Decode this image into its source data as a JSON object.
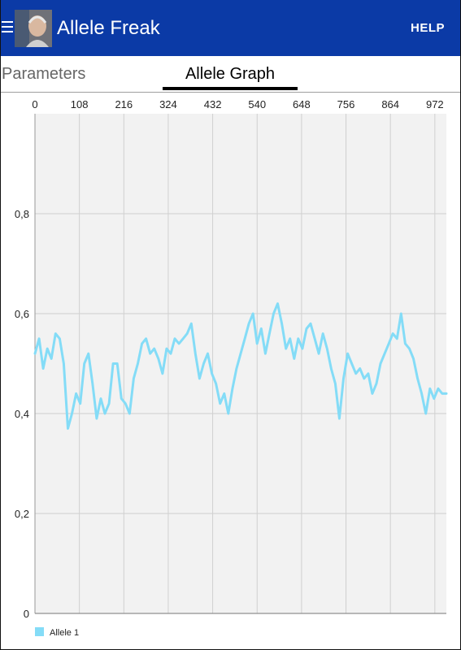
{
  "app_bar": {
    "title": "Allele Freak",
    "help_label": "HELP",
    "background": "#0b3aa6",
    "menu_icon": "hamburger-icon",
    "avatar": "profile-avatar"
  },
  "tabs": [
    {
      "label": "Parameters",
      "selected": false
    },
    {
      "label": "Allele Graph",
      "selected": true
    }
  ],
  "chart_data": {
    "type": "line",
    "title": "",
    "xlabel": "",
    "ylabel": "",
    "xlim": [
      0,
      1000
    ],
    "ylim": [
      0,
      1
    ],
    "x_ticks": [
      "0",
      "108",
      "216",
      "324",
      "432",
      "540",
      "648",
      "756",
      "864",
      "972"
    ],
    "x_tick_values": [
      0,
      108,
      216,
      324,
      432,
      540,
      648,
      756,
      864,
      972
    ],
    "y_ticks": [
      "0",
      "0,2",
      "0,4",
      "0,6",
      "0,8"
    ],
    "y_tick_values": [
      0,
      0.2,
      0.4,
      0.6,
      0.8
    ],
    "x_axis_position": "top",
    "grid": true,
    "legend_position": "bottom-left",
    "series": [
      {
        "name": "Allele 1",
        "color": "#84dcf7",
        "x": [
          0,
          10,
          20,
          30,
          40,
          50,
          60,
          70,
          80,
          90,
          100,
          110,
          120,
          130,
          140,
          150,
          160,
          170,
          180,
          190,
          200,
          210,
          220,
          230,
          240,
          250,
          260,
          270,
          280,
          290,
          300,
          310,
          320,
          330,
          340,
          350,
          360,
          370,
          380,
          390,
          400,
          410,
          420,
          430,
          440,
          450,
          460,
          470,
          480,
          490,
          500,
          510,
          520,
          530,
          540,
          550,
          560,
          570,
          580,
          590,
          600,
          610,
          620,
          630,
          640,
          650,
          660,
          670,
          680,
          690,
          700,
          710,
          720,
          730,
          740,
          750,
          760,
          770,
          780,
          790,
          800,
          810,
          820,
          830,
          840,
          850,
          860,
          870,
          880,
          890,
          900,
          910,
          920,
          930,
          940,
          950,
          960,
          970,
          980,
          990,
          1000
        ],
        "values": [
          0.52,
          0.55,
          0.49,
          0.53,
          0.51,
          0.56,
          0.55,
          0.5,
          0.37,
          0.4,
          0.44,
          0.42,
          0.5,
          0.52,
          0.46,
          0.39,
          0.43,
          0.4,
          0.42,
          0.5,
          0.5,
          0.43,
          0.42,
          0.4,
          0.47,
          0.5,
          0.54,
          0.55,
          0.52,
          0.53,
          0.51,
          0.48,
          0.53,
          0.52,
          0.55,
          0.54,
          0.55,
          0.56,
          0.58,
          0.52,
          0.47,
          0.5,
          0.52,
          0.48,
          0.46,
          0.42,
          0.44,
          0.4,
          0.45,
          0.49,
          0.52,
          0.55,
          0.58,
          0.6,
          0.54,
          0.57,
          0.52,
          0.56,
          0.6,
          0.62,
          0.58,
          0.53,
          0.55,
          0.51,
          0.55,
          0.53,
          0.57,
          0.58,
          0.55,
          0.52,
          0.56,
          0.53,
          0.49,
          0.46,
          0.39,
          0.47,
          0.52,
          0.5,
          0.48,
          0.49,
          0.47,
          0.48,
          0.44,
          0.46,
          0.5,
          0.52,
          0.54,
          0.56,
          0.55,
          0.6,
          0.54,
          0.53,
          0.51,
          0.47,
          0.44,
          0.4,
          0.45,
          0.43,
          0.45,
          0.44,
          0.44
        ]
      }
    ]
  }
}
